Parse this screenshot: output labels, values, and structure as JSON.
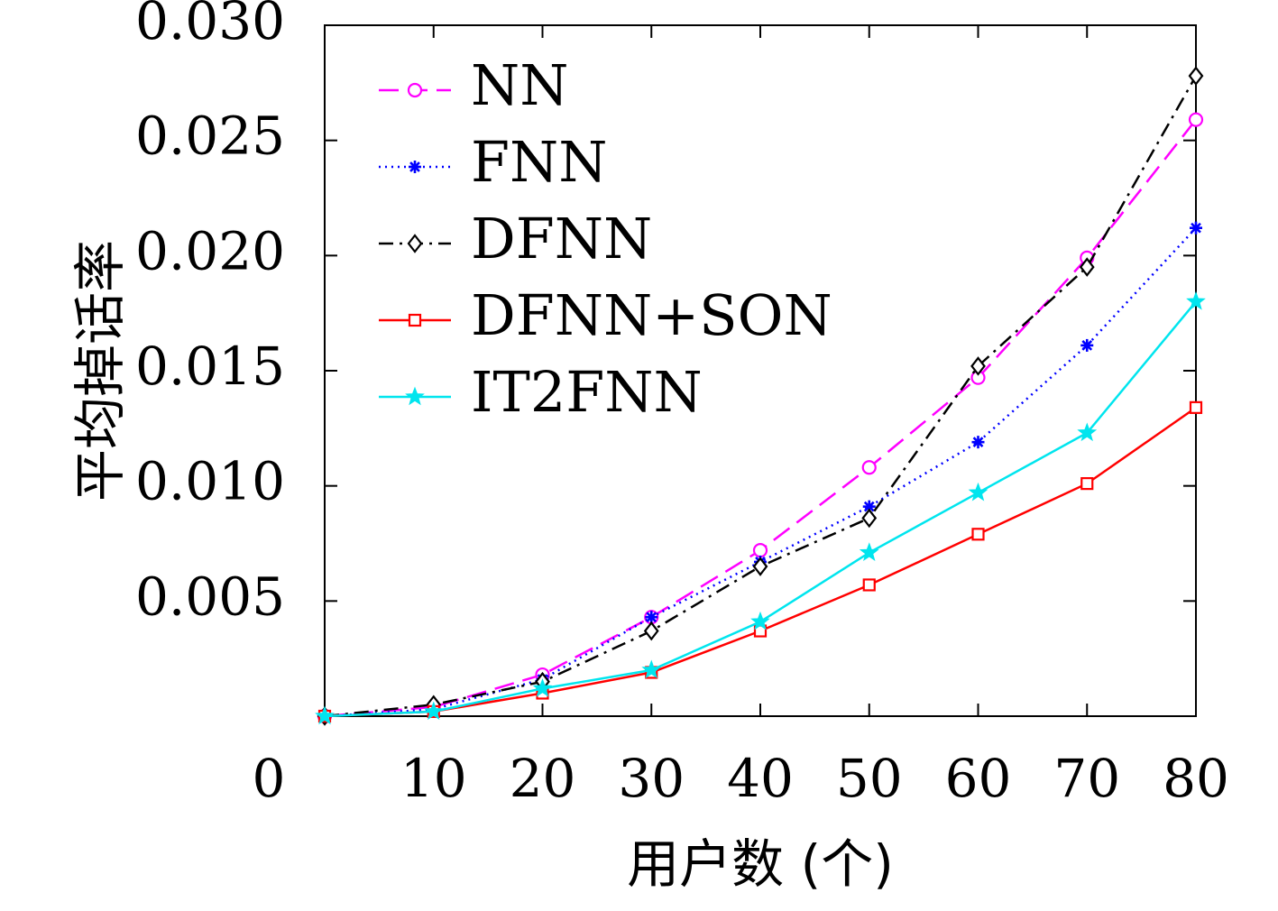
{
  "chart_data": {
    "type": "line",
    "title": "",
    "xlabel": "用户数 (个)",
    "ylabel": "平均掉话率",
    "xlim": [
      0,
      80
    ],
    "ylim": [
      0,
      0.03
    ],
    "x_ticks": [
      "0",
      "10",
      "20",
      "30",
      "40",
      "50",
      "60",
      "70",
      "80"
    ],
    "y_ticks": [
      "0.005",
      "0.010",
      "0.015",
      "0.020",
      "0.025",
      "0.030"
    ],
    "grid": false,
    "legend_position": "top-left",
    "x": [
      0,
      10,
      20,
      30,
      40,
      50,
      60,
      70,
      80
    ],
    "series": [
      {
        "name": "NN",
        "color": "#ff00ff",
        "marker": "circle",
        "dash": "dashed",
        "values": [
          0,
          0.0004,
          0.0018,
          0.0043,
          0.0072,
          0.0108,
          0.0147,
          0.0199,
          0.0259
        ]
      },
      {
        "name": "FNN",
        "color": "#0000ff",
        "marker": "asterisk",
        "dash": "dotted",
        "values": [
          0,
          0.0003,
          0.0016,
          0.0043,
          0.0067,
          0.0091,
          0.0119,
          0.0161,
          0.0212
        ]
      },
      {
        "name": "DFNN",
        "color": "#000000",
        "marker": "diamond",
        "dash": "dashdot",
        "values": [
          0,
          0.0005,
          0.0015,
          0.0037,
          0.0065,
          0.0086,
          0.0152,
          0.0195,
          0.0278
        ]
      },
      {
        "name": "DFNN+SON",
        "color": "#ff0000",
        "marker": "square",
        "dash": "solid",
        "values": [
          0,
          0.0002,
          0.001,
          0.0019,
          0.0037,
          0.0057,
          0.0079,
          0.0101,
          0.0134
        ]
      },
      {
        "name": "IT2FNN",
        "color": "#00e5ee",
        "marker": "star",
        "dash": "solid",
        "values": [
          0,
          0.0002,
          0.0012,
          0.002,
          0.0041,
          0.0071,
          0.0097,
          0.0123,
          0.018
        ]
      }
    ]
  }
}
